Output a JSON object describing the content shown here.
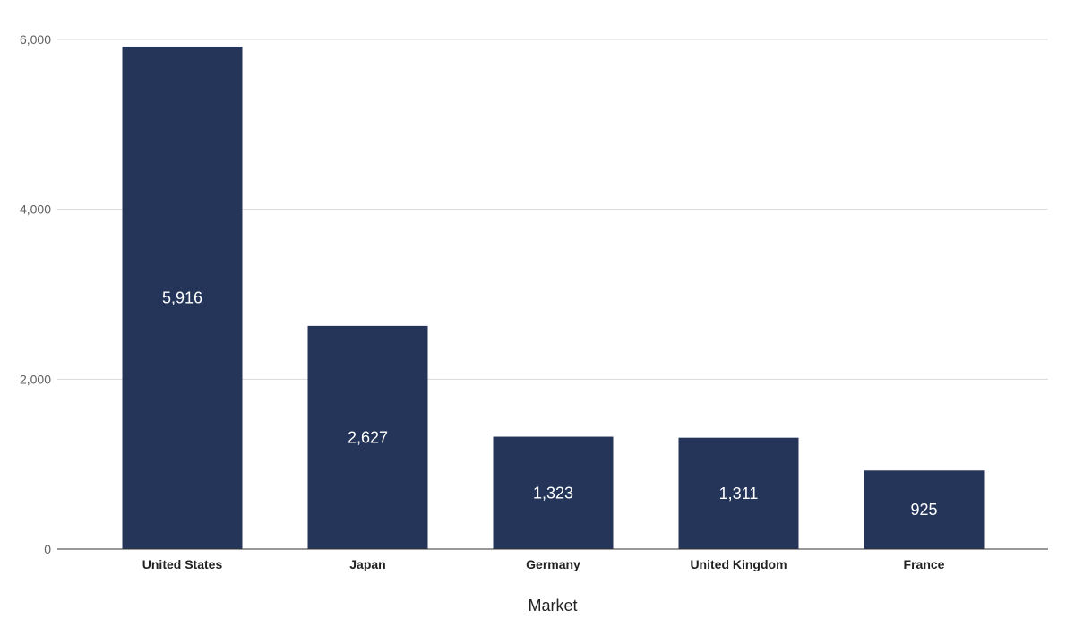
{
  "chart_data": {
    "type": "bar",
    "title": "",
    "xlabel": "Market",
    "ylabel": "",
    "categories": [
      "United States",
      "Japan",
      "Germany",
      "United Kingdom",
      "France"
    ],
    "values": [
      5916,
      2627,
      1323,
      1311,
      925
    ],
    "value_labels": [
      "5,916",
      "2,627",
      "1,323",
      "1,311",
      "925"
    ],
    "y_ticks": [
      0,
      2000,
      4000,
      6000
    ],
    "y_tick_labels": [
      "0",
      "2,000",
      "4,000",
      "6,000"
    ],
    "ylim": [
      0,
      6000
    ],
    "grid": true,
    "legend": "none",
    "bar_color": "#243559"
  }
}
